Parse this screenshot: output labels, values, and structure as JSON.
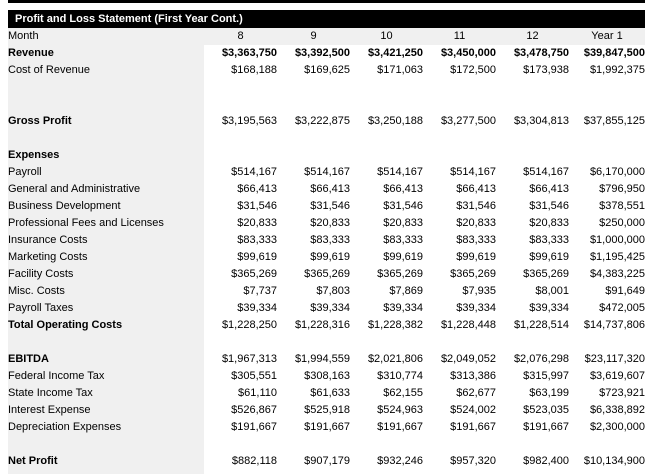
{
  "header": {
    "title": "Profit and Loss Statement (First Year Cont.)"
  },
  "colors": {
    "title_bar_bg": "#000000",
    "title_bar_text": "#ffffff",
    "label_column_bg": "#f0f0f0",
    "value_area_bg": "#ffffff",
    "text": "#000000"
  },
  "rows": [
    {
      "head": true,
      "label": "Month",
      "values": [
        "8",
        "9",
        "10",
        "11",
        "12",
        "Year 1"
      ]
    },
    {
      "label": "Revenue",
      "lb": true,
      "vb": true,
      "values": [
        "$3,363,750",
        "$3,392,500",
        "$3,421,250",
        "$3,450,000",
        "$3,478,750",
        "$39,847,500"
      ]
    },
    {
      "label": "Cost of Revenue",
      "values": [
        "$168,188",
        "$169,625",
        "$171,063",
        "$172,500",
        "$173,938",
        "$1,992,375"
      ]
    },
    {
      "spacer": true
    },
    {
      "spacer": true
    },
    {
      "label": "Gross Profit",
      "lb": true,
      "values": [
        "$3,195,563",
        "$3,222,875",
        "$3,250,188",
        "$3,277,500",
        "$3,304,813",
        "$37,855,125"
      ]
    },
    {
      "spacer": true
    },
    {
      "label": "Expenses",
      "lb": true,
      "values": [
        "",
        "",
        "",
        "",
        "",
        ""
      ]
    },
    {
      "label": "Payroll",
      "values": [
        "$514,167",
        "$514,167",
        "$514,167",
        "$514,167",
        "$514,167",
        "$6,170,000"
      ]
    },
    {
      "label": "General and Administrative",
      "values": [
        "$66,413",
        "$66,413",
        "$66,413",
        "$66,413",
        "$66,413",
        "$796,950"
      ]
    },
    {
      "label": "Business Development",
      "values": [
        "$31,546",
        "$31,546",
        "$31,546",
        "$31,546",
        "$31,546",
        "$378,551"
      ]
    },
    {
      "label": "Professional Fees and Licenses",
      "values": [
        "$20,833",
        "$20,833",
        "$20,833",
        "$20,833",
        "$20,833",
        "$250,000"
      ]
    },
    {
      "label": "Insurance Costs",
      "values": [
        "$83,333",
        "$83,333",
        "$83,333",
        "$83,333",
        "$83,333",
        "$1,000,000"
      ]
    },
    {
      "label": "Marketing Costs",
      "values": [
        "$99,619",
        "$99,619",
        "$99,619",
        "$99,619",
        "$99,619",
        "$1,195,425"
      ]
    },
    {
      "label": "Facility Costs",
      "values": [
        "$365,269",
        "$365,269",
        "$365,269",
        "$365,269",
        "$365,269",
        "$4,383,225"
      ]
    },
    {
      "label": "Misc. Costs",
      "values": [
        "$7,737",
        "$7,803",
        "$7,869",
        "$7,935",
        "$8,001",
        "$91,649"
      ]
    },
    {
      "label": "Payroll Taxes",
      "values": [
        "$39,334",
        "$39,334",
        "$39,334",
        "$39,334",
        "$39,334",
        "$472,005"
      ]
    },
    {
      "label": "Total Operating Costs",
      "lb": true,
      "values": [
        "$1,228,250",
        "$1,228,316",
        "$1,228,382",
        "$1,228,448",
        "$1,228,514",
        "$14,737,806"
      ]
    },
    {
      "spacer": true
    },
    {
      "label": "EBITDA",
      "lb": true,
      "values": [
        "$1,967,313",
        "$1,994,559",
        "$2,021,806",
        "$2,049,052",
        "$2,076,298",
        "$23,117,320"
      ]
    },
    {
      "label": "Federal Income Tax",
      "values": [
        "$305,551",
        "$308,163",
        "$310,774",
        "$313,386",
        "$315,997",
        "$3,619,607"
      ]
    },
    {
      "label": "State Income Tax",
      "values": [
        "$61,110",
        "$61,633",
        "$62,155",
        "$62,677",
        "$63,199",
        "$723,921"
      ]
    },
    {
      "label": "Interest Expense",
      "values": [
        "$526,867",
        "$525,918",
        "$524,963",
        "$524,002",
        "$523,035",
        "$6,338,892"
      ]
    },
    {
      "label": "Depreciation Expenses",
      "values": [
        "$191,667",
        "$191,667",
        "$191,667",
        "$191,667",
        "$191,667",
        "$2,300,000"
      ]
    },
    {
      "spacer": true
    },
    {
      "label": "Net Profit",
      "lb": true,
      "values": [
        "$882,118",
        "$907,179",
        "$932,246",
        "$957,320",
        "$982,400",
        "$10,134,900"
      ]
    }
  ]
}
